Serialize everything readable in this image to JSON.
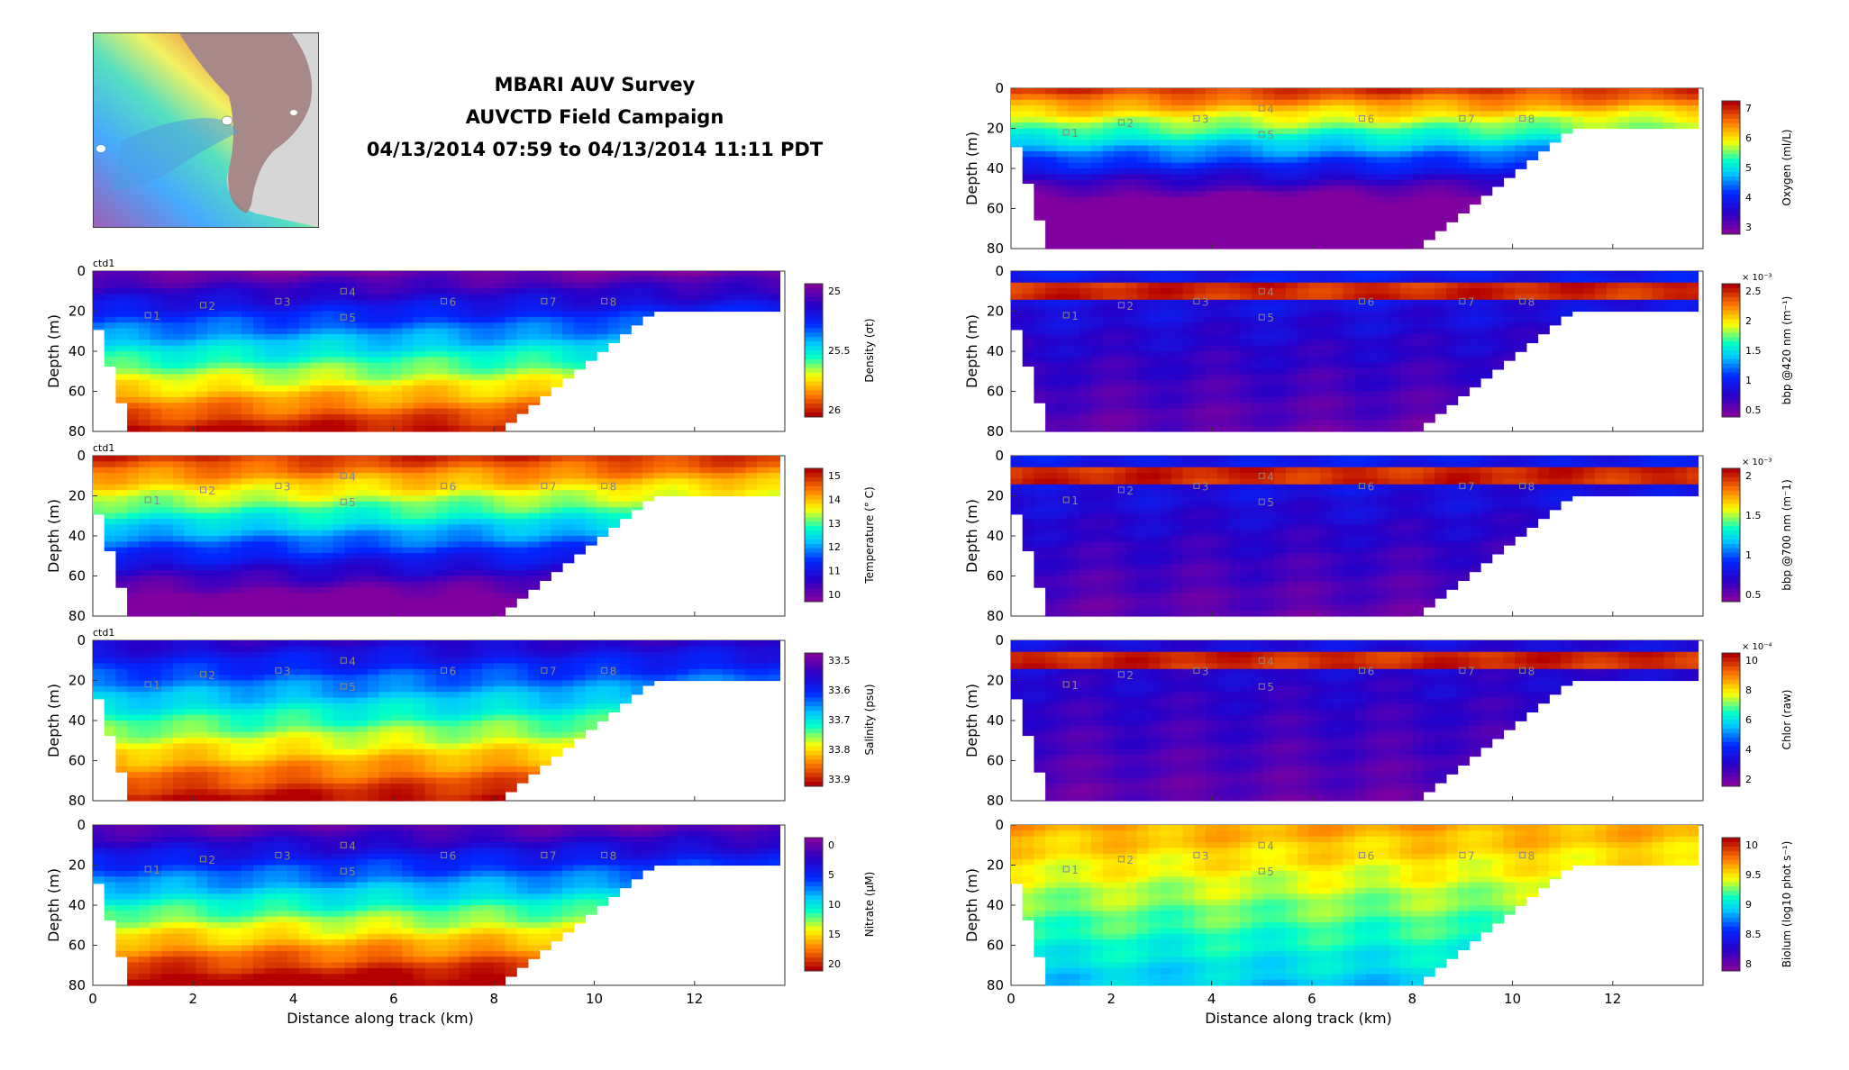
{
  "figure": {
    "title_lines": [
      "MBARI AUV Survey",
      "AUVCTD Field Campaign",
      "04/13/2014 07:59 to 04/13/2014 11:11 PDT"
    ],
    "xlabel": "Distance along track (km)",
    "ylabel": "Depth (m)"
  },
  "chart_data": [
    {
      "type": "heatmap",
      "panel_label": "ctd1",
      "ylabel": "Depth (m)",
      "xlim": [
        0,
        13.8
      ],
      "ylim": [
        80,
        0
      ],
      "colorbar": {
        "label": "Density (σt)",
        "ticks": [
          "25",
          "25.5",
          "26"
        ],
        "colormap": "jet-reversed"
      },
      "station_labels": [
        "1",
        "2",
        "3",
        "4",
        "5",
        "6",
        "7",
        "8"
      ]
    },
    {
      "type": "heatmap",
      "panel_label": "ctd1",
      "ylabel": "Depth (m)",
      "xlim": [
        0,
        13.8
      ],
      "ylim": [
        80,
        0
      ],
      "colorbar": {
        "label": "Temperature (° C)",
        "ticks": [
          "15",
          "14",
          "13",
          "12",
          "11",
          "10"
        ],
        "colormap": "jet"
      },
      "station_labels": [
        "1",
        "2",
        "3",
        "4",
        "5",
        "6",
        "7",
        "8"
      ]
    },
    {
      "type": "heatmap",
      "panel_label": "ctd1",
      "ylabel": "Depth (m)",
      "xlim": [
        0,
        13.8
      ],
      "ylim": [
        80,
        0
      ],
      "colorbar": {
        "label": "Salinity (psu)",
        "ticks": [
          "33.5",
          "33.6",
          "33.7",
          "33.8",
          "33.9"
        ],
        "colormap": "jet-reversed"
      },
      "station_labels": [
        "1",
        "2",
        "3",
        "4",
        "5",
        "6",
        "7",
        "8"
      ]
    },
    {
      "type": "heatmap",
      "panel_label": "",
      "ylabel": "Depth (m)",
      "xlabel": "Distance along track (km)",
      "xlim": [
        0,
        13.8
      ],
      "ylim": [
        80,
        0
      ],
      "xticks": [
        "0",
        "2",
        "4",
        "6",
        "8",
        "10",
        "12"
      ],
      "colorbar": {
        "label": "Nitrate (μM)",
        "ticks": [
          "0",
          "5",
          "10",
          "15",
          "20"
        ],
        "colormap": "jet-reversed"
      },
      "station_labels": [
        "1",
        "2",
        "3",
        "4",
        "5",
        "6",
        "7",
        "8"
      ]
    },
    {
      "type": "heatmap",
      "panel_label": "",
      "ylabel": "Depth (m)",
      "xlim": [
        0,
        13.8
      ],
      "ylim": [
        80,
        0
      ],
      "colorbar": {
        "label": "Oxygen (ml/L)",
        "ticks": [
          "7",
          "6",
          "5",
          "4",
          "3"
        ],
        "colormap": "jet"
      },
      "station_labels": [
        "1",
        "2",
        "3",
        "4",
        "5",
        "6",
        "7",
        "8"
      ]
    },
    {
      "type": "heatmap",
      "panel_label": "",
      "ylabel": "Depth (m)",
      "xlim": [
        0,
        13.8
      ],
      "ylim": [
        80,
        0
      ],
      "colorbar": {
        "label": "bbp @420 nm (m⁻¹)",
        "ticks": [
          "2.5",
          "2",
          "1.5",
          "1",
          "0.5"
        ],
        "exponent": "× 10⁻³",
        "colormap": "jet"
      },
      "station_labels": [
        "1",
        "2",
        "3",
        "4",
        "5",
        "6",
        "7",
        "8"
      ]
    },
    {
      "type": "heatmap",
      "panel_label": "",
      "ylabel": "Depth (m)",
      "xlim": [
        0,
        13.8
      ],
      "ylim": [
        80,
        0
      ],
      "colorbar": {
        "label": "bbp @700 nm (m⁻1)",
        "ticks": [
          "2",
          "1.5",
          "1",
          "0.5"
        ],
        "exponent": "× 10⁻³",
        "colormap": "jet"
      },
      "station_labels": [
        "1",
        "2",
        "3",
        "4",
        "5",
        "6",
        "7",
        "8"
      ]
    },
    {
      "type": "heatmap",
      "panel_label": "",
      "ylabel": "Depth (m)",
      "xlim": [
        0,
        13.8
      ],
      "ylim": [
        80,
        0
      ],
      "colorbar": {
        "label": "Chlor (raw)",
        "ticks": [
          "10",
          "8",
          "6",
          "4",
          "2"
        ],
        "exponent": "× 10⁻⁴",
        "colormap": "jet"
      },
      "station_labels": [
        "1",
        "2",
        "3",
        "4",
        "5",
        "6",
        "7",
        "8"
      ]
    },
    {
      "type": "heatmap",
      "panel_label": "",
      "ylabel": "Depth (m)",
      "xlabel": "Distance along track (km)",
      "xlim": [
        0,
        13.8
      ],
      "ylim": [
        80,
        0
      ],
      "xticks": [
        "0",
        "2",
        "4",
        "6",
        "8",
        "10",
        "12"
      ],
      "colorbar": {
        "label": "Biolum (log10 phot s⁻¹)",
        "ticks": [
          "10",
          "9.5",
          "9",
          "8.5",
          "8"
        ],
        "colormap": "jet"
      },
      "station_labels": [
        "1",
        "2",
        "3",
        "4",
        "5",
        "6",
        "7",
        "8"
      ]
    }
  ],
  "yticks": [
    "0",
    "20",
    "40",
    "60",
    "80"
  ],
  "station_positions_km": [
    1.1,
    2.2,
    3.7,
    5.0,
    5.0,
    7.0,
    9.0,
    10.2
  ],
  "station_depths_m": [
    22,
    17,
    15,
    10,
    23,
    15,
    15,
    15
  ]
}
